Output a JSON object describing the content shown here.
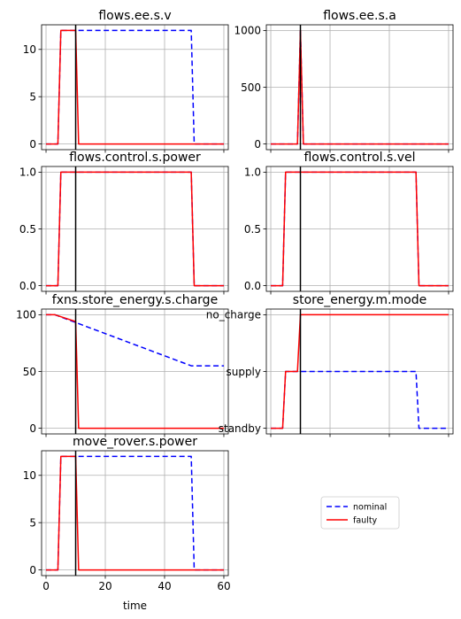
{
  "figure": {
    "xlabel": "time"
  },
  "legend": {
    "location": "center-right",
    "entries": [
      {
        "label": "nominal",
        "color": "#0000ff",
        "style": "dashed"
      },
      {
        "label": "faulty",
        "color": "#ff0000",
        "style": "solid"
      }
    ]
  },
  "chart_data": [
    {
      "type": "line",
      "title": "flows.ee.s.v",
      "xlim": [
        -1.5,
        61.5
      ],
      "ylim": [
        -0.6,
        12.6
      ],
      "xticks": [
        0,
        20,
        40,
        60
      ],
      "show_xticklabels": false,
      "yticks": [
        {
          "v": 0,
          "label": "0"
        },
        {
          "v": 5,
          "label": "5"
        },
        {
          "v": 10,
          "label": "10"
        }
      ],
      "grid": true,
      "vline_x": 10,
      "series": [
        {
          "name": "nominal",
          "x": [
            0,
            4,
            5,
            49,
            50,
            60
          ],
          "y": [
            0,
            0,
            12,
            12,
            0,
            0
          ]
        },
        {
          "name": "faulty",
          "x": [
            0,
            4,
            5,
            10,
            11,
            60
          ],
          "y": [
            0,
            0,
            12,
            12,
            0,
            0
          ]
        }
      ]
    },
    {
      "type": "line",
      "title": "flows.ee.s.a",
      "xlim": [
        -1.5,
        61.5
      ],
      "ylim": [
        -50,
        1050
      ],
      "xticks": [
        0,
        20,
        40,
        60
      ],
      "show_xticklabels": false,
      "yticks": [
        {
          "v": 0,
          "label": "0"
        },
        {
          "v": 500,
          "label": "500"
        },
        {
          "v": 1000,
          "label": "1000"
        }
      ],
      "grid": true,
      "vline_x": 10,
      "series": [
        {
          "name": "nominal",
          "x": [
            0,
            9,
            10,
            11,
            60
          ],
          "y": [
            0,
            0,
            1000,
            0,
            0
          ]
        },
        {
          "name": "faulty",
          "x": [
            0,
            9,
            10,
            11,
            60
          ],
          "y": [
            0,
            0,
            1000,
            0,
            0
          ]
        }
      ]
    },
    {
      "type": "line",
      "title": "flows.control.s.power",
      "xlim": [
        -1.5,
        61.5
      ],
      "ylim": [
        -0.05,
        1.05
      ],
      "xticks": [
        0,
        20,
        40,
        60
      ],
      "show_xticklabels": false,
      "yticks": [
        {
          "v": 0,
          "label": "0.0"
        },
        {
          "v": 0.5,
          "label": "0.5"
        },
        {
          "v": 1,
          "label": "1.0"
        }
      ],
      "grid": true,
      "vline_x": 10,
      "series": [
        {
          "name": "nominal",
          "x": [
            0,
            4,
            5,
            49,
            50,
            60
          ],
          "y": [
            0,
            0,
            1,
            1,
            0,
            0
          ]
        },
        {
          "name": "faulty",
          "x": [
            0,
            4,
            5,
            49,
            50,
            60
          ],
          "y": [
            0,
            0,
            1,
            1,
            0,
            0
          ]
        }
      ]
    },
    {
      "type": "line",
      "title": "flows.control.s.vel",
      "xlim": [
        -1.5,
        61.5
      ],
      "ylim": [
        -0.05,
        1.05
      ],
      "xticks": [
        0,
        20,
        40,
        60
      ],
      "show_xticklabels": false,
      "yticks": [
        {
          "v": 0,
          "label": "0.0"
        },
        {
          "v": 0.5,
          "label": "0.5"
        },
        {
          "v": 1,
          "label": "1.0"
        }
      ],
      "grid": true,
      "vline_x": 10,
      "series": [
        {
          "name": "nominal",
          "x": [
            0,
            4,
            5,
            49,
            50,
            60
          ],
          "y": [
            0,
            0,
            1,
            1,
            0,
            0
          ]
        },
        {
          "name": "faulty",
          "x": [
            0,
            4,
            5,
            49,
            50,
            60
          ],
          "y": [
            0,
            0,
            1,
            1,
            0,
            0
          ]
        }
      ]
    },
    {
      "type": "line",
      "title": "fxns.store_energy.s.charge",
      "xlim": [
        -1.5,
        61.5
      ],
      "ylim": [
        -5,
        105
      ],
      "xticks": [
        0,
        20,
        40,
        60
      ],
      "show_xticklabels": false,
      "yticks": [
        {
          "v": 0,
          "label": "0"
        },
        {
          "v": 50,
          "label": "50"
        },
        {
          "v": 100,
          "label": "100"
        }
      ],
      "grid": true,
      "vline_x": 10,
      "series": [
        {
          "name": "nominal",
          "x": [
            0,
            3,
            49,
            60
          ],
          "y": [
            100,
            100,
            55,
            55
          ]
        },
        {
          "name": "faulty",
          "x": [
            0,
            3,
            10,
            11,
            60
          ],
          "y": [
            100,
            100,
            94,
            0,
            0
          ]
        }
      ]
    },
    {
      "type": "line",
      "title": "store_energy.m.mode",
      "xlim": [
        -1.5,
        61.5
      ],
      "ylim": [
        -0.1,
        2.1
      ],
      "xticks": [
        0,
        20,
        40,
        60
      ],
      "show_xticklabels": false,
      "yticks": [
        {
          "v": 0,
          "label": "standby"
        },
        {
          "v": 1,
          "label": "supply"
        },
        {
          "v": 2,
          "label": "no_charge"
        }
      ],
      "grid": true,
      "vline_x": 10,
      "series": [
        {
          "name": "nominal",
          "x": [
            0,
            4,
            5,
            49,
            50,
            60
          ],
          "y": [
            0,
            0,
            1,
            1,
            0,
            0
          ]
        },
        {
          "name": "faulty",
          "x": [
            0,
            4,
            5,
            9,
            10,
            60
          ],
          "y": [
            0,
            0,
            1,
            1,
            2,
            2
          ]
        }
      ]
    },
    {
      "type": "line",
      "title": "move_rover.s.power",
      "xlim": [
        -1.5,
        61.5
      ],
      "ylim": [
        -0.6,
        12.6
      ],
      "xticks": [
        0,
        20,
        40,
        60
      ],
      "show_xticklabels": true,
      "xticklabels": [
        "0",
        "20",
        "40",
        "60"
      ],
      "yticks": [
        {
          "v": 0,
          "label": "0"
        },
        {
          "v": 5,
          "label": "5"
        },
        {
          "v": 10,
          "label": "10"
        }
      ],
      "grid": true,
      "vline_x": 10,
      "series": [
        {
          "name": "nominal",
          "x": [
            0,
            4,
            5,
            49,
            50,
            60
          ],
          "y": [
            0,
            0,
            12,
            12,
            0,
            0
          ]
        },
        {
          "name": "faulty",
          "x": [
            0,
            4,
            5,
            10,
            11,
            60
          ],
          "y": [
            0,
            0,
            12,
            12,
            0,
            0
          ]
        }
      ]
    }
  ]
}
